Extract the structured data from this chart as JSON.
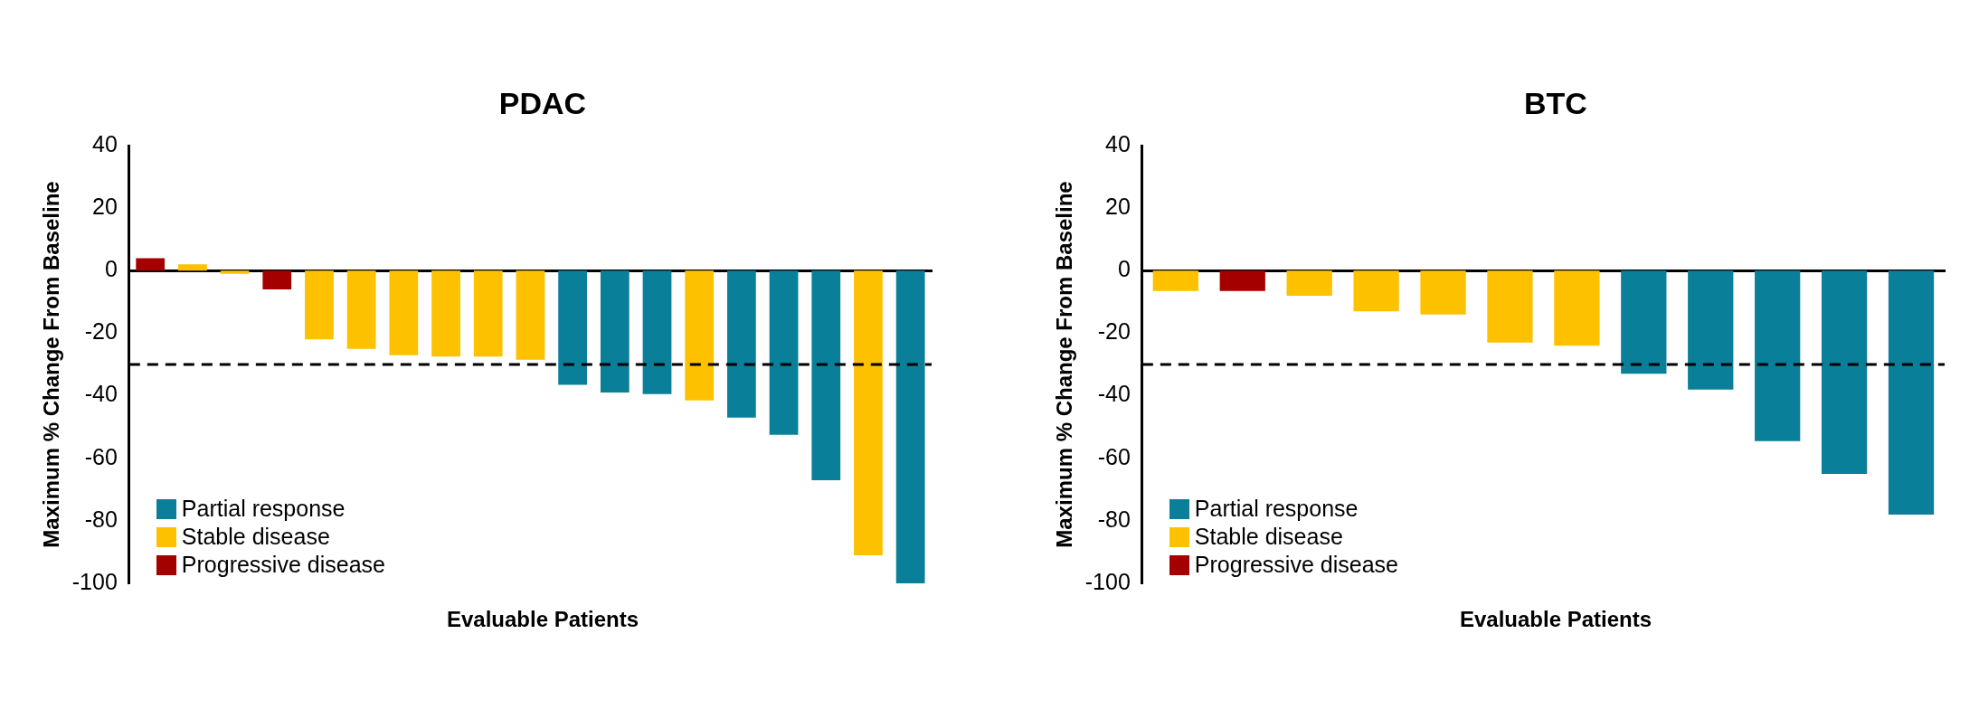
{
  "chart_data": [
    {
      "type": "bar",
      "title": "PDAC",
      "xlabel": "Evaluable Patients",
      "ylabel": "Maximum % Change From Baseline",
      "categories": [
        null,
        null,
        null,
        null,
        null,
        null,
        null,
        null,
        null,
        null,
        null,
        null,
        null,
        null,
        null,
        null,
        null,
        null,
        null
      ],
      "series": [
        {
          "name": "Partial response",
          "color": "#0a7f99",
          "values": [
            null,
            null,
            null,
            null,
            null,
            null,
            null,
            null,
            null,
            null,
            -36.5,
            -39,
            -39.5,
            null,
            -47,
            -52.5,
            -67,
            null,
            -100
          ]
        },
        {
          "name": "Stable disease",
          "color": "#fdc100",
          "values": [
            null,
            2,
            -1,
            null,
            -22,
            -25,
            -27,
            -27.5,
            -27.5,
            -28.5,
            null,
            null,
            null,
            -41.5,
            null,
            null,
            null,
            -91,
            null
          ]
        },
        {
          "name": "Progressive disease",
          "color": "#a50000",
          "values": [
            4,
            null,
            null,
            -6,
            null,
            null,
            null,
            null,
            null,
            null,
            null,
            null,
            null,
            null,
            null,
            null,
            null,
            null,
            null
          ]
        }
      ],
      "ylim": [
        -100,
        40
      ],
      "yticks": [
        -100,
        -80,
        -60,
        -40,
        -20,
        0,
        20,
        40
      ],
      "ref_lines": [
        {
          "axis": "y",
          "value": -30,
          "color": "#000000",
          "line_style": "dashed"
        }
      ],
      "legend": "bottom left",
      "tick_labels": "y"
    },
    {
      "type": "bar",
      "title": "BTC",
      "xlabel": "Evaluable Patients",
      "ylabel": "Maximum % Change From Baseline",
      "categories": [
        null,
        null,
        null,
        null,
        null,
        null,
        null,
        null,
        null,
        null,
        null,
        null
      ],
      "series": [
        {
          "name": "Partial response",
          "color": "#0a7f99",
          "values": [
            null,
            null,
            null,
            null,
            null,
            null,
            null,
            -33,
            -38,
            -54.5,
            -65,
            -78
          ]
        },
        {
          "name": "Stable disease",
          "color": "#fdc100",
          "values": [
            -6.5,
            null,
            -8,
            -13,
            -14,
            -23,
            -24,
            null,
            null,
            null,
            null,
            null
          ]
        },
        {
          "name": "Progressive disease",
          "color": "#a50000",
          "values": [
            null,
            -6.5,
            null,
            null,
            null,
            null,
            null,
            null,
            null,
            null,
            null,
            null
          ]
        }
      ],
      "ylim": [
        -100,
        40
      ],
      "yticks": [
        -100,
        -80,
        -60,
        -40,
        -20,
        0,
        20,
        40
      ],
      "ref_lines": [
        {
          "axis": "y",
          "value": -30,
          "color": "#000000",
          "line_style": "dashed"
        }
      ],
      "legend": "bottom left",
      "tick_labels": "y"
    }
  ]
}
